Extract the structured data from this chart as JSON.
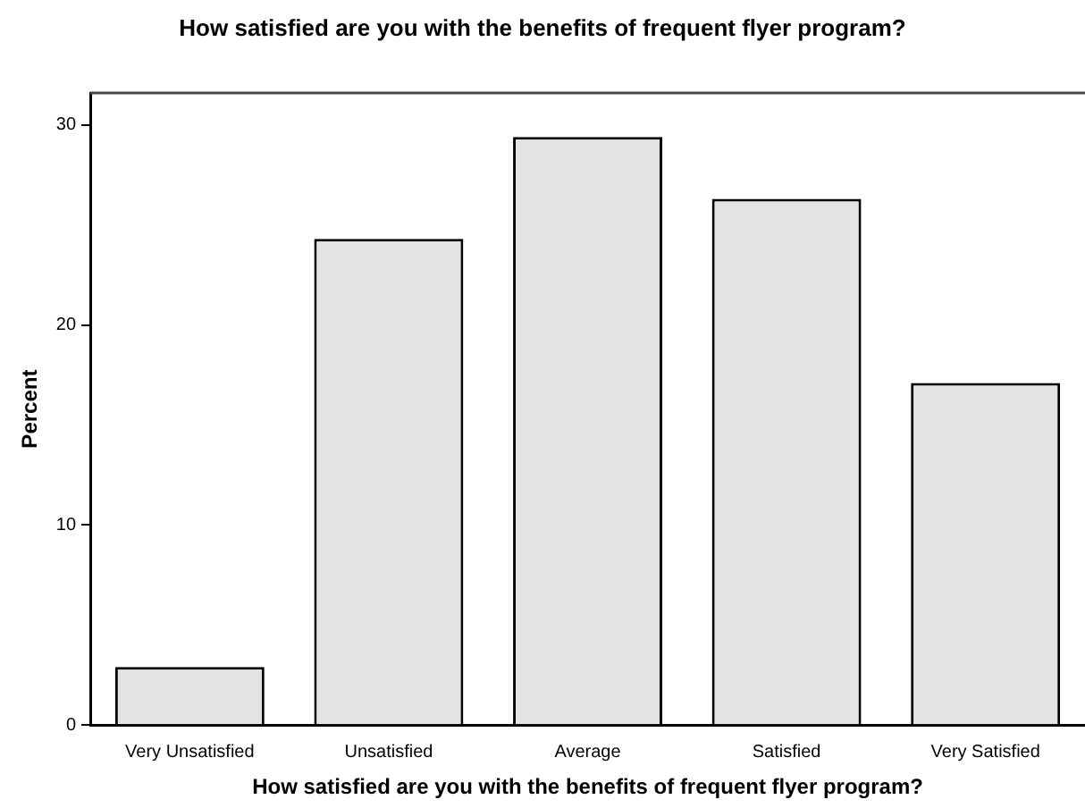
{
  "chart_data": {
    "type": "bar",
    "title": "How satisfied are you with the benefits of frequent flyer program?",
    "xlabel": "How satisfied are you with the benefits of frequent flyer program?",
    "ylabel": "Percent",
    "categories": [
      "Very Unsatisfied",
      "Unsatisfied",
      "Average",
      "Satisfied",
      "Very Satisfied"
    ],
    "values": [
      2.9,
      24.3,
      29.4,
      26.3,
      17.1
    ],
    "color": "#e3e3e3",
    "ylim": [
      0,
      31.6
    ],
    "yticks": [
      0,
      10,
      20,
      30
    ],
    "grid": false,
    "legend": false
  }
}
